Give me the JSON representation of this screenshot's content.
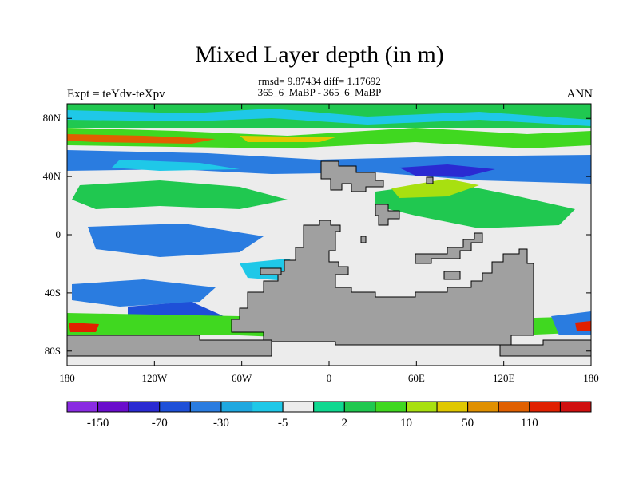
{
  "title": "Mixed Layer depth (in m)",
  "stats_line": "rmsd= 9.87434 diff= 1.17692",
  "subtitle_center": "365_6_MaBP - 365_6_MaBP",
  "left_label": "Expt = teYdv-teXpv",
  "right_label": "ANN",
  "map": {
    "projection": "cylindrical-equidistant",
    "lon_range": [
      -180,
      180
    ],
    "lat_range": [
      -90,
      90
    ],
    "land_color": "#a0a0a0",
    "x_ticks": [
      {
        "lon": -180,
        "label": "180"
      },
      {
        "lon": -120,
        "label": "120W"
      },
      {
        "lon": -60,
        "label": "60W"
      },
      {
        "lon": 0,
        "label": "0"
      },
      {
        "lon": 60,
        "label": "60E"
      },
      {
        "lon": 120,
        "label": "120E"
      },
      {
        "lon": 180,
        "label": "180"
      }
    ],
    "y_ticks": [
      {
        "lat": 80,
        "label": "80N"
      },
      {
        "lat": 40,
        "label": "40N"
      },
      {
        "lat": 0,
        "label": "0"
      },
      {
        "lat": -40,
        "label": "40S"
      },
      {
        "lat": -80,
        "label": "80S"
      }
    ]
  },
  "colorbar": {
    "colors": [
      "#8a2be2",
      "#6a0dcc",
      "#2a2ad2",
      "#1e50d8",
      "#2a7ce0",
      "#1fa8e0",
      "#1fc8e8",
      "#ececec",
      "#10d890",
      "#20c850",
      "#40d820",
      "#a8e010",
      "#e0c800",
      "#e09000",
      "#e06000",
      "#e02000",
      "#d01010"
    ],
    "labels": [
      {
        "index": 1,
        "text": "-150"
      },
      {
        "index": 3,
        "text": "-70"
      },
      {
        "index": 5,
        "text": "-30"
      },
      {
        "index": 7,
        "text": "-5"
      },
      {
        "index": 9,
        "text": "2"
      },
      {
        "index": 11,
        "text": "10"
      },
      {
        "index": 13,
        "text": "50"
      },
      {
        "index": 15,
        "text": "110"
      }
    ]
  }
}
